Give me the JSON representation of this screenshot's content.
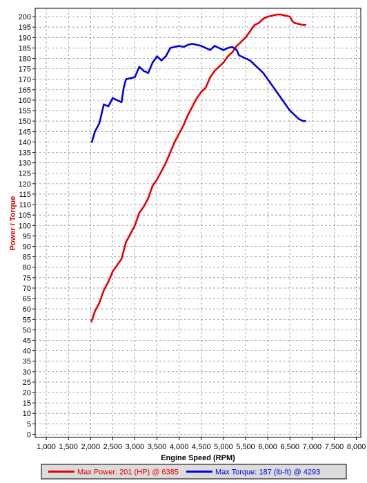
{
  "chart_data": {
    "type": "line",
    "xlabel": "Engine Speed (RPM)",
    "ylabel": "Power / Torque",
    "xlim": [
      750,
      8100
    ],
    "ylim": [
      -1.5,
      204
    ],
    "x_ticks": [
      1000,
      1500,
      2000,
      2500,
      3000,
      3500,
      4000,
      4500,
      5000,
      5500,
      6000,
      6500,
      7000,
      7500,
      8000
    ],
    "x_tick_labels": [
      "1,000",
      "1,500",
      "2,000",
      "2,500",
      "3,000",
      "3,500",
      "4,000",
      "4,500",
      "5,000",
      "5,500",
      "6,000",
      "6,500",
      "7,000",
      "7,500",
      "8,000"
    ],
    "y_ticks": [
      0,
      5,
      10,
      15,
      20,
      25,
      30,
      35,
      40,
      45,
      50,
      55,
      60,
      65,
      70,
      75,
      80,
      85,
      90,
      95,
      100,
      105,
      110,
      115,
      120,
      125,
      130,
      135,
      140,
      145,
      150,
      155,
      160,
      165,
      170,
      175,
      180,
      185,
      190,
      195,
      200
    ],
    "grid": true,
    "legend_placement": "bottom",
    "series": [
      {
        "name": "Max Power: 201 (HP) @ 6385",
        "color": "#e60000",
        "x": [
          2020,
          2100,
          2200,
          2300,
          2400,
          2500,
          2600,
          2700,
          2800,
          2900,
          3000,
          3100,
          3200,
          3300,
          3400,
          3500,
          3600,
          3700,
          3800,
          3900,
          4000,
          4100,
          4200,
          4300,
          4400,
          4500,
          4600,
          4700,
          4800,
          4900,
          5000,
          5100,
          5200,
          5300,
          5400,
          5500,
          5600,
          5700,
          5800,
          5900,
          6000,
          6100,
          6200,
          6300,
          6400,
          6500,
          6550,
          6600,
          6700,
          6800,
          6850
        ],
        "y": [
          54,
          59,
          63,
          69,
          73,
          78,
          81,
          84,
          92,
          96,
          100,
          106,
          109,
          113,
          119,
          122,
          126,
          130,
          135,
          140,
          144,
          148,
          153,
          157,
          161,
          164,
          166,
          171,
          174,
          176,
          178,
          181,
          183,
          186,
          188,
          190,
          193,
          196,
          197,
          199,
          200,
          200.5,
          201,
          201,
          200.5,
          200,
          198,
          197,
          196.5,
          196,
          196
        ]
      },
      {
        "name": "Max Torque: 187 (lb-ft) @ 4293",
        "color": "#0000e6",
        "x": [
          2030,
          2100,
          2200,
          2300,
          2400,
          2500,
          2600,
          2700,
          2750,
          2800,
          2900,
          3000,
          3100,
          3200,
          3300,
          3400,
          3500,
          3600,
          3700,
          3800,
          3900,
          4000,
          4100,
          4200,
          4293,
          4400,
          4500,
          4600,
          4700,
          4800,
          4900,
          5000,
          5100,
          5200,
          5300,
          5350,
          5400,
          5500,
          5600,
          5700,
          5800,
          5900,
          6000,
          6100,
          6200,
          6300,
          6400,
          6500,
          6600,
          6700,
          6800,
          6850
        ],
        "y": [
          140,
          145,
          149,
          158,
          157,
          161,
          160,
          159,
          166,
          170,
          170.5,
          171,
          176,
          174,
          173,
          178,
          181,
          179,
          181,
          185,
          185.5,
          186,
          185.5,
          186.5,
          187,
          186.5,
          186,
          185,
          184,
          186,
          185,
          184,
          185,
          185.5,
          184,
          181.5,
          181,
          180,
          179,
          177,
          175,
          173,
          170,
          167,
          164,
          161,
          158,
          155,
          153,
          151,
          150,
          150
        ]
      }
    ]
  }
}
